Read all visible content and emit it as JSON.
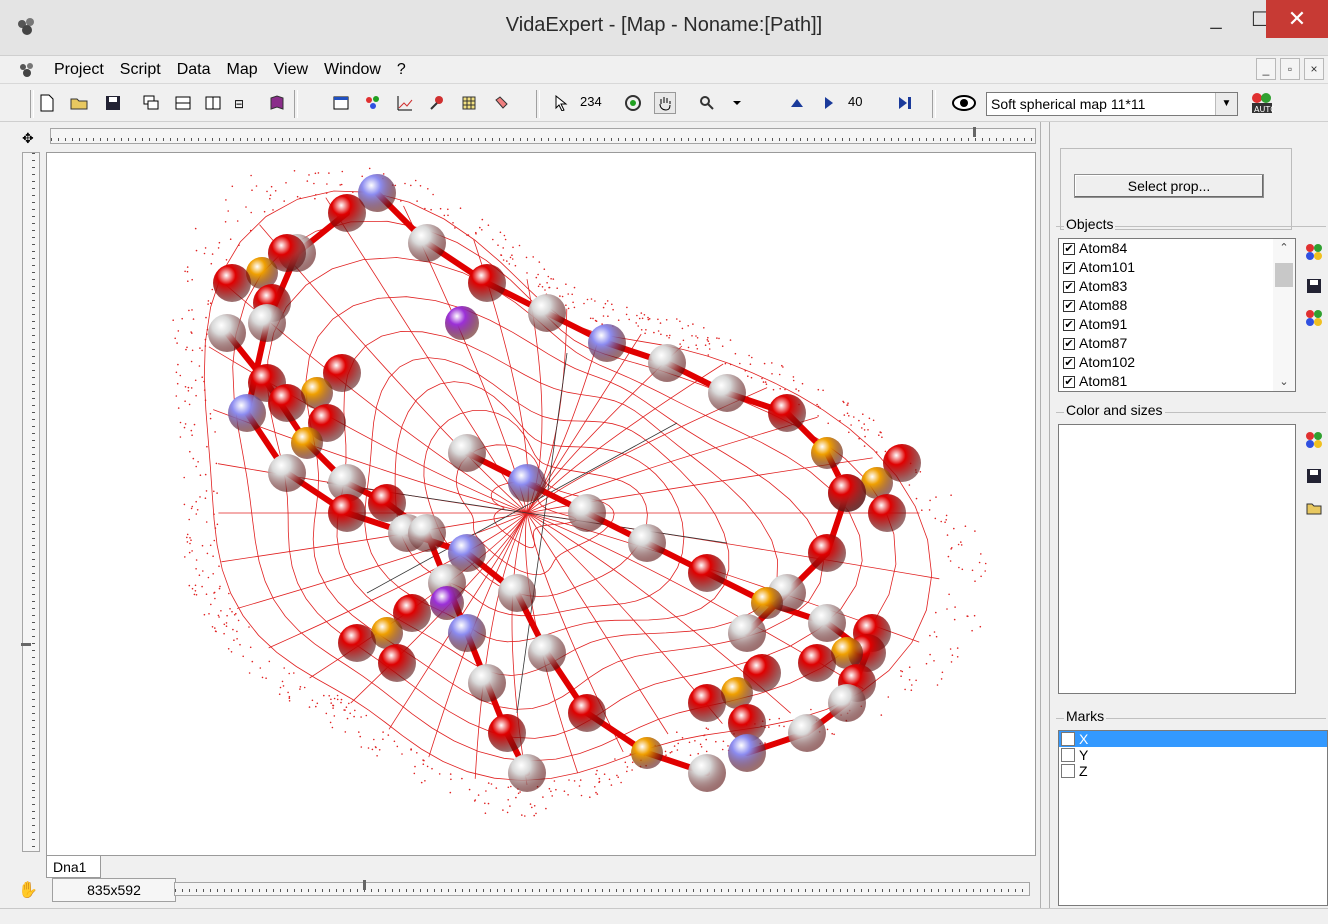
{
  "window": {
    "title": "VidaExpert - [Map - Noname:[Path]]",
    "controls": {
      "minimize": "_",
      "maximize": "☐",
      "close": "✕"
    }
  },
  "menu": {
    "items": [
      "Project",
      "Script",
      "Data",
      "Map",
      "View",
      "Window",
      "?"
    ],
    "mdi_controls": [
      "_",
      "▫",
      "×"
    ]
  },
  "toolbar": {
    "point_count": "234",
    "step_value": "40",
    "map_selector": "Soft spherical map 11*11"
  },
  "map": {
    "tab_label": "Dna1",
    "size_label": "835x592"
  },
  "right_panel": {
    "select_prop_label": "Select prop...",
    "objects_label": "Objects",
    "objects": [
      {
        "name": "Atom84",
        "checked": true
      },
      {
        "name": "Atom101",
        "checked": true
      },
      {
        "name": "Atom83",
        "checked": true
      },
      {
        "name": "Atom88",
        "checked": true
      },
      {
        "name": "Atom91",
        "checked": true
      },
      {
        "name": "Atom87",
        "checked": true
      },
      {
        "name": "Atom102",
        "checked": true
      },
      {
        "name": "Atom81",
        "checked": true
      }
    ],
    "color_sizes_label": "Color and sizes",
    "marks_label": "Marks",
    "marks": [
      {
        "name": "X",
        "selected": true
      },
      {
        "name": "Y",
        "selected": false
      },
      {
        "name": "Z",
        "selected": false
      }
    ]
  },
  "colors": {
    "mesh": "#e02020",
    "oxygen": "#e00000",
    "carbon": "#d8d8d8",
    "nitrogen": "#8c8cf0",
    "phosphorus": "#f0a000",
    "special": "#9b30d8",
    "selection": "#3399ff",
    "close_button": "#c73a34"
  }
}
